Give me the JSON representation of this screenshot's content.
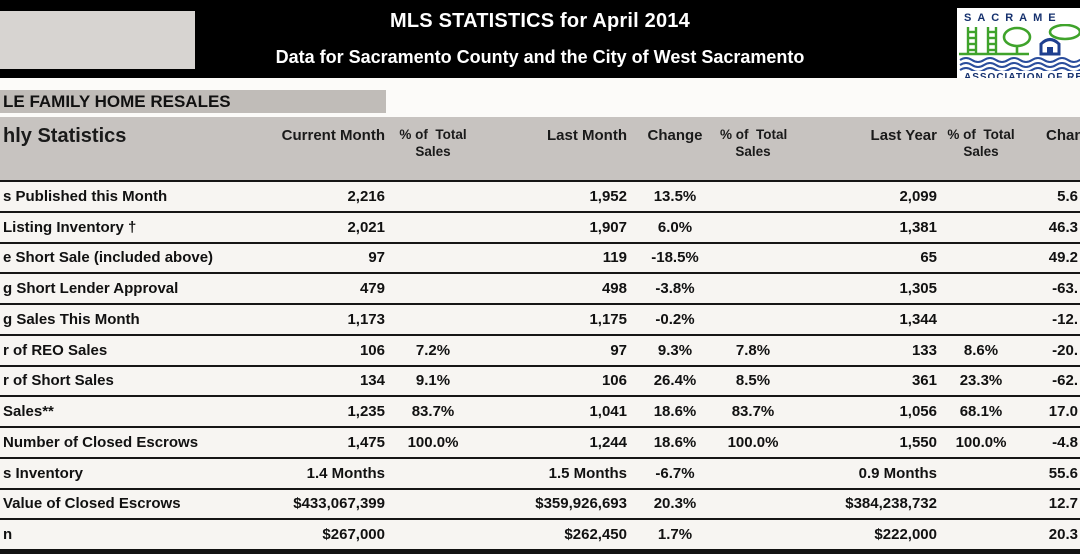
{
  "page": {
    "title": "MLS STATISTICS for April 2014",
    "subtitle": "Data for Sacramento County and the City of West Sacramento",
    "section_title": "LE FAMILY HOME RESALES"
  },
  "logo": {
    "top_text": "SACRAME",
    "bottom_text": "ASSOCIATION OF RE",
    "green": "#3fa32b",
    "navy": "#1e3f8f"
  },
  "colors": {
    "topbar_bg": "#000000",
    "header_band_bg": "#c7c3c0",
    "section_bar_bg": "#c0bcb8",
    "page_bg": "#f3f1ee",
    "row_line": "#161616"
  },
  "table": {
    "headers": {
      "stats": "hly Statistics",
      "current_month": "Current Month",
      "pct_total": "% of  Total",
      "sales": "Sales",
      "last_month": "Last Month",
      "change": "Change",
      "last_year": "Last Year"
    },
    "rows": [
      {
        "label": "s Published this Month",
        "current": "2,216",
        "pct_cur": "",
        "last_month": "1,952",
        "change_lm": "13.5%",
        "pct_lm": "",
        "last_year": "2,099",
        "pct_ly": "",
        "change_ly": "5.6"
      },
      {
        "label": "Listing Inventory †",
        "current": "2,021",
        "pct_cur": "",
        "last_month": "1,907",
        "change_lm": "6.0%",
        "pct_lm": "",
        "last_year": "1,381",
        "pct_ly": "",
        "change_ly": "46.3"
      },
      {
        "label": "e Short Sale (included above)",
        "current": "97",
        "pct_cur": "",
        "last_month": "119",
        "change_lm": "-18.5%",
        "pct_lm": "",
        "last_year": "65",
        "pct_ly": "",
        "change_ly": "49.2"
      },
      {
        "label": "g Short Lender Approval",
        "current": "479",
        "pct_cur": "",
        "last_month": "498",
        "change_lm": "-3.8%",
        "pct_lm": "",
        "last_year": "1,305",
        "pct_ly": "",
        "change_ly": "-63."
      },
      {
        "label": "g Sales This Month",
        "current": "1,173",
        "pct_cur": "",
        "last_month": "1,175",
        "change_lm": "-0.2%",
        "pct_lm": "",
        "last_year": "1,344",
        "pct_ly": "",
        "change_ly": "-12."
      },
      {
        "label": "r of REO Sales",
        "current": "106",
        "pct_cur": "7.2%",
        "last_month": "97",
        "change_lm": "9.3%",
        "pct_lm": "7.8%",
        "last_year": "133",
        "pct_ly": "8.6%",
        "change_ly": "-20."
      },
      {
        "label": "r of Short Sales",
        "current": "134",
        "pct_cur": "9.1%",
        "last_month": "106",
        "change_lm": "26.4%",
        "pct_lm": "8.5%",
        "last_year": "361",
        "pct_ly": "23.3%",
        "change_ly": "-62."
      },
      {
        "label": "Sales**",
        "current": "1,235",
        "pct_cur": "83.7%",
        "last_month": "1,041",
        "change_lm": "18.6%",
        "pct_lm": "83.7%",
        "last_year": "1,056",
        "pct_ly": "68.1%",
        "change_ly": "17.0"
      },
      {
        "label": "Number of Closed Escrows",
        "current": "1,475",
        "pct_cur": "100.0%",
        "last_month": "1,244",
        "change_lm": "18.6%",
        "pct_lm": "100.0%",
        "last_year": "1,550",
        "pct_ly": "100.0%",
        "change_ly": "-4.8"
      },
      {
        "label": "s Inventory",
        "current": "1.4 Months",
        "pct_cur": "",
        "last_month": "1.5 Months",
        "change_lm": "-6.7%",
        "pct_lm": "",
        "last_year": "0.9 Months",
        "pct_ly": "",
        "change_ly": "55.6"
      },
      {
        "label": "Value of Closed Escrows",
        "current": "$433,067,399",
        "pct_cur": "",
        "last_month": "$359,926,693",
        "change_lm": "20.3%",
        "pct_lm": "",
        "last_year": "$384,238,732",
        "pct_ly": "",
        "change_ly": "12.7"
      },
      {
        "label": "n",
        "current": "$267,000",
        "pct_cur": "",
        "last_month": "$262,450",
        "change_lm": "1.7%",
        "pct_lm": "",
        "last_year": "$222,000",
        "pct_ly": "",
        "change_ly": "20.3"
      }
    ]
  }
}
